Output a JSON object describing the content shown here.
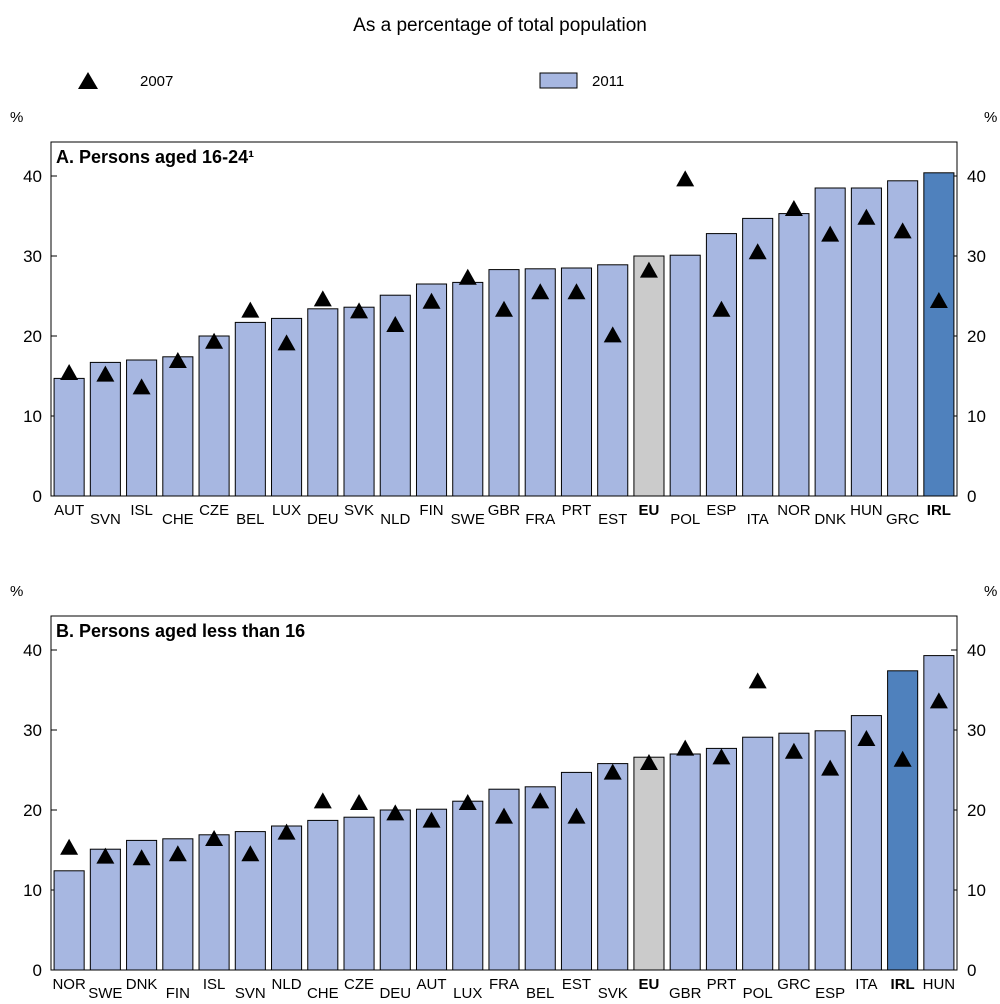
{
  "header": {
    "subtitle": "As a percentage of total population"
  },
  "legend": [
    {
      "label": "2007",
      "marker": "triangle"
    },
    {
      "label": "2011",
      "marker": "bar"
    }
  ],
  "colors": {
    "bar": "#a7b7e1",
    "eu": "#cbcbcb",
    "irl": "#4f81bd",
    "marker": "#000000"
  },
  "chart_data": [
    {
      "type": "bar",
      "title": "A. Persons aged 16-24¹",
      "ylabel_left": "%",
      "ylabel_right": "%",
      "ylim": [
        0,
        40
      ],
      "yticks": [
        0,
        10,
        20,
        30,
        40
      ],
      "categories": [
        "AUT",
        "SVN",
        "ISL",
        "CHE",
        "CZE",
        "BEL",
        "LUX",
        "DEU",
        "SVK",
        "NLD",
        "FIN",
        "SWE",
        "GBR",
        "FRA",
        "PRT",
        "EST",
        "EU",
        "POL",
        "ESP",
        "ITA",
        "NOR",
        "DNK",
        "HUN",
        "GRC",
        "IRL"
      ],
      "highlight": {
        "EU": "eu",
        "IRL": "irl"
      },
      "bold_categories": [
        "EU",
        "IRL"
      ],
      "series": [
        {
          "name": "2011",
          "kind": "bar",
          "values": [
            14.7,
            16.7,
            17.0,
            17.4,
            20.0,
            21.7,
            22.2,
            23.4,
            23.6,
            25.1,
            26.5,
            26.7,
            28.3,
            28.4,
            28.5,
            28.9,
            30.0,
            30.1,
            32.8,
            34.7,
            35.3,
            38.5,
            38.5,
            39.4,
            40.4
          ]
        },
        {
          "name": "2007",
          "kind": "marker",
          "values": [
            15.5,
            15.3,
            13.7,
            17.0,
            19.4,
            23.3,
            19.2,
            24.7,
            23.2,
            21.5,
            24.4,
            27.4,
            23.4,
            25.6,
            25.6,
            20.2,
            28.3,
            39.7,
            23.4,
            30.6,
            36.0,
            32.8,
            34.9,
            33.2,
            24.5
          ]
        }
      ]
    },
    {
      "type": "bar",
      "title": "B. Persons aged less than 16",
      "ylabel_left": "%",
      "ylabel_right": "%",
      "ylim": [
        0,
        40
      ],
      "yticks": [
        0,
        10,
        20,
        30,
        40
      ],
      "categories": [
        "NOR",
        "SWE",
        "DNK",
        "FIN",
        "ISL",
        "SVN",
        "NLD",
        "CHE",
        "CZE",
        "DEU",
        "AUT",
        "LUX",
        "FRA",
        "BEL",
        "EST",
        "SVK",
        "EU",
        "GBR",
        "PRT",
        "POL",
        "GRC",
        "ESP",
        "ITA",
        "IRL",
        "HUN"
      ],
      "highlight": {
        "EU": "eu",
        "IRL": "irl"
      },
      "bold_categories": [
        "EU",
        "IRL"
      ],
      "series": [
        {
          "name": "2011",
          "kind": "bar",
          "values": [
            12.4,
            15.1,
            16.2,
            16.4,
            16.9,
            17.3,
            18.0,
            18.7,
            19.1,
            20.0,
            20.1,
            21.1,
            22.6,
            22.9,
            24.7,
            25.8,
            26.6,
            27.0,
            27.7,
            29.1,
            29.6,
            29.9,
            31.8,
            37.4,
            39.3
          ]
        },
        {
          "name": "2007",
          "kind": "marker",
          "values": [
            15.4,
            14.3,
            14.1,
            14.6,
            16.5,
            14.6,
            17.3,
            21.2,
            21.0,
            19.7,
            18.8,
            21.0,
            19.3,
            21.2,
            19.3,
            24.8,
            26.0,
            27.8,
            26.7,
            36.2,
            27.4,
            25.3,
            29.0,
            26.4,
            33.7
          ]
        }
      ]
    }
  ]
}
